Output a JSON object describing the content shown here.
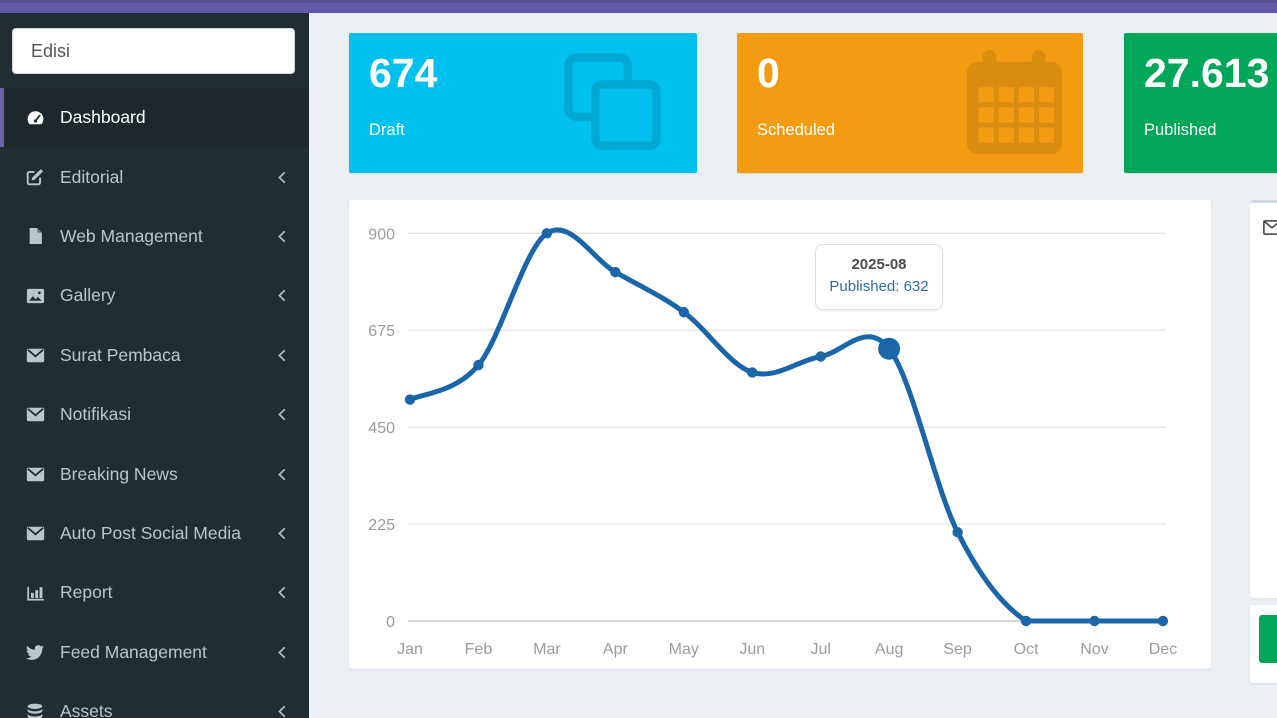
{
  "navbar": {},
  "sidebar": {
    "search": {
      "value": "Edisi"
    },
    "items": [
      {
        "label": "Dashboard",
        "icon": "tachometer-icon",
        "active": true,
        "chevron": false
      },
      {
        "label": "Editorial",
        "icon": "edit-icon",
        "active": false,
        "chevron": true
      },
      {
        "label": "Web Management",
        "icon": "file-icon",
        "active": false,
        "chevron": true
      },
      {
        "label": "Gallery",
        "icon": "image-icon",
        "active": false,
        "chevron": true
      },
      {
        "label": "Surat Pembaca",
        "icon": "envelope-icon",
        "active": false,
        "chevron": true
      },
      {
        "label": "Notifikasi",
        "icon": "envelope-icon",
        "active": false,
        "chevron": true
      },
      {
        "label": "Breaking News",
        "icon": "envelope-icon",
        "active": false,
        "chevron": true
      },
      {
        "label": "Auto Post Social Media",
        "icon": "envelope-icon",
        "active": false,
        "chevron": true
      },
      {
        "label": "Report",
        "icon": "bar-chart-icon",
        "active": false,
        "chevron": true
      },
      {
        "label": "Feed Management",
        "icon": "twitter-icon",
        "active": false,
        "chevron": true
      },
      {
        "label": "Assets",
        "icon": "database-icon",
        "active": false,
        "chevron": true
      }
    ]
  },
  "info_boxes": [
    {
      "value": "674",
      "label": "Draft",
      "color": "#00c0ef",
      "icon_color": "#00a8d2",
      "icon": "copy-icon"
    },
    {
      "value": "0",
      "label": "Scheduled",
      "color": "#f39c12",
      "icon_color": "#d98d10",
      "icon": "calendar-icon"
    },
    {
      "value": "27.613",
      "label": "Published",
      "color": "#00a65a",
      "icon_color": "#00924f",
      "icon": ""
    }
  ],
  "chart_data": {
    "type": "line",
    "title": "",
    "xlabel": "",
    "ylabel": "",
    "x": [
      "Jan",
      "Feb",
      "Mar",
      "Apr",
      "May",
      "Jun",
      "Jul",
      "Aug",
      "Sep",
      "Oct",
      "Nov",
      "Dec"
    ],
    "series": [
      {
        "name": "Published",
        "values": [
          514,
          594,
          900,
          810,
          717,
          577,
          614,
          632,
          206,
          0,
          0,
          0
        ]
      }
    ],
    "ylim": [
      0,
      900
    ],
    "yticks": [
      0,
      225,
      450,
      675,
      900
    ],
    "grid": true,
    "legend_position": "none",
    "line_color": "#1b65a9",
    "highlight_index": 7,
    "tooltip": {
      "title": "2025-08",
      "text": "Published: 632"
    }
  },
  "right_panels": {
    "top_panel_icon": "envelope-outline-icon",
    "bottom_button_color": "#00a65a"
  },
  "colors": {
    "navbar": "#5f59a7",
    "sidebar_bg": "#222d32",
    "sidebar_active_bg": "#1e282c",
    "sidebar_accent": "#6a5fa8",
    "content_bg": "#ecf0f5"
  }
}
